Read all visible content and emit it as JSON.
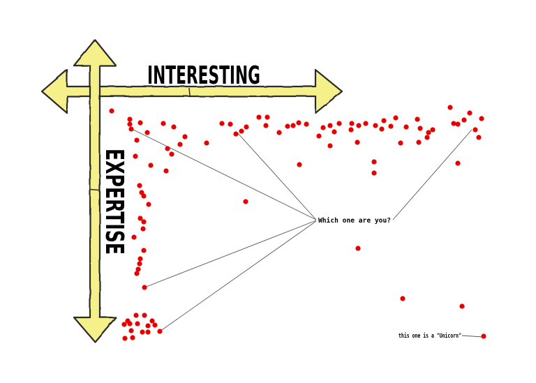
{
  "labels": {
    "x_axis": "INTERESTING",
    "y_axis": "EXPERTISE",
    "question": "Which one are you?",
    "unicorn_note": "this one is a \"Unicorn\""
  },
  "colors": {
    "arrow_fill": "#f6f08a",
    "arrow_stroke": "#2b2b2b",
    "dot": "#e60000",
    "line": "#555555"
  },
  "chart_data": {
    "type": "scatter",
    "xlabel": "INTERESTING",
    "ylabel": "EXPERTISE",
    "annotation": "Which one are you?",
    "highlight": "this one is a \"Unicorn\""
  }
}
